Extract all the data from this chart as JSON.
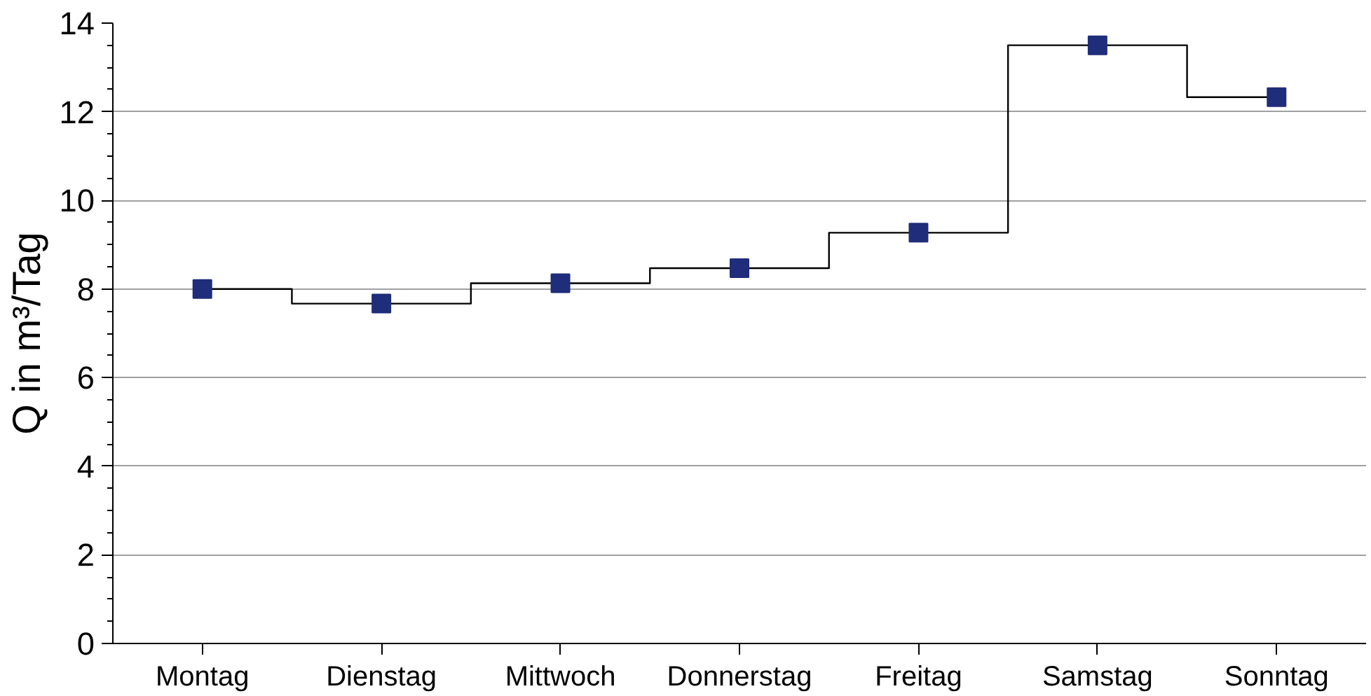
{
  "chart_data": {
    "type": "step",
    "ylabel": "Q in m³/Tag",
    "categories": [
      "Montag",
      "Dienstag",
      "Mittwoch",
      "Donnerstag",
      "Freitag",
      "Samstag",
      "Sonntag"
    ],
    "series": [
      {
        "color": "#000000",
        "marker": "none",
        "values": [
          8.0,
          7.67,
          8.13,
          8.47,
          9.27,
          13.5,
          12.33
        ]
      },
      {
        "type": "scatter",
        "color": "#1f2d7a",
        "marker": "square",
        "values": [
          8.0,
          7.67,
          8.13,
          8.47,
          9.27,
          13.5,
          12.33
        ]
      }
    ],
    "ylim": [
      0,
      14
    ],
    "yticks": [
      0,
      2,
      4,
      6,
      8,
      10,
      12,
      14
    ],
    "grid": "y"
  }
}
